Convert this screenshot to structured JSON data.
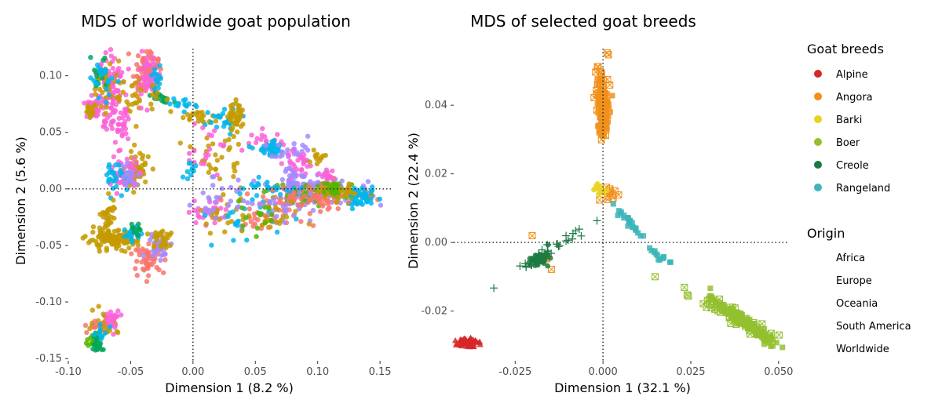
{
  "chart_data": [
    {
      "type": "scatter",
      "title": "MDS of worldwide goat population",
      "xlabel": "Dimension 1 (8.2 %)",
      "ylabel": "Dimension 2 (5.6 %)",
      "xlim": [
        -0.1,
        0.16
      ],
      "ylim": [
        -0.152,
        0.124
      ],
      "xticks": [
        -0.1,
        -0.05,
        0.0,
        0.05,
        0.1,
        0.15
      ],
      "xtick_labels": [
        "-0.10",
        "-0.05",
        "0.00",
        "0.05",
        "0.10",
        "0.15"
      ],
      "yticks": [
        -0.15,
        -0.1,
        -0.05,
        0.0,
        0.05,
        0.1
      ],
      "ytick_labels": [
        "-0.15",
        "-0.10",
        "-0.05",
        "0.00",
        "0.05",
        "0.10"
      ],
      "reference_lines": {
        "x": 0.0,
        "y": 0.0,
        "style": "dotted"
      },
      "grid": false,
      "colors": [
        "#F8766D",
        "#C49A00",
        "#53B400",
        "#00A65A",
        "#00B6EB",
        "#A58AFF",
        "#FB61D7"
      ],
      "clusters": [
        {
          "color_index": 6,
          "center": [
            -0.08,
            0.07
          ],
          "spread": [
            0.004,
            0.004
          ],
          "n": 40
        },
        {
          "color_index": 1,
          "center": [
            -0.082,
            0.068
          ],
          "spread": [
            0.002,
            0.003
          ],
          "n": 15
        },
        {
          "color_index": 6,
          "center": [
            -0.065,
            0.085
          ],
          "spread": [
            0.005,
            0.018
          ],
          "n": 90
        },
        {
          "color_index": 1,
          "center": [
            -0.068,
            0.093
          ],
          "spread": [
            0.006,
            0.01
          ],
          "n": 30
        },
        {
          "color_index": 3,
          "center": [
            -0.075,
            0.105
          ],
          "spread": [
            0.005,
            0.01
          ],
          "n": 15
        },
        {
          "color_index": 4,
          "center": [
            -0.07,
            0.1
          ],
          "spread": [
            0.006,
            0.012
          ],
          "n": 20
        },
        {
          "color_index": 0,
          "center": [
            -0.038,
            0.103
          ],
          "spread": [
            0.005,
            0.01
          ],
          "n": 80
        },
        {
          "color_index": 6,
          "center": [
            -0.036,
            0.1
          ],
          "spread": [
            0.004,
            0.008
          ],
          "n": 40
        },
        {
          "color_index": 4,
          "center": [
            -0.03,
            0.095
          ],
          "spread": [
            0.003,
            0.006
          ],
          "n": 15
        },
        {
          "color_index": 3,
          "center": [
            -0.025,
            0.08
          ],
          "spread": [
            0.004,
            0.003
          ],
          "n": 20
        },
        {
          "color_index": 1,
          "center": [
            -0.045,
            0.08
          ],
          "spread": [
            0.01,
            0.01
          ],
          "n": 30
        },
        {
          "color_index": 6,
          "center": [
            -0.06,
            0.06
          ],
          "spread": [
            0.008,
            0.01
          ],
          "n": 30
        },
        {
          "color_index": 1,
          "center": [
            -0.045,
            0.015
          ],
          "spread": [
            0.005,
            0.008
          ],
          "n": 60
        },
        {
          "color_index": 6,
          "center": [
            -0.055,
            0.013
          ],
          "spread": [
            0.005,
            0.007
          ],
          "n": 50
        },
        {
          "color_index": 4,
          "center": [
            -0.06,
            0.01
          ],
          "spread": [
            0.005,
            0.006
          ],
          "n": 30
        },
        {
          "color_index": 5,
          "center": [
            -0.05,
            0.012
          ],
          "spread": [
            0.004,
            0.005
          ],
          "n": 20
        },
        {
          "color_index": 1,
          "center": [
            -0.065,
            -0.045
          ],
          "spread": [
            0.01,
            0.004
          ],
          "n": 120
        },
        {
          "color_index": 1,
          "center": [
            -0.068,
            -0.025
          ],
          "spread": [
            0.003,
            0.01
          ],
          "n": 30
        },
        {
          "color_index": 0,
          "center": [
            -0.035,
            -0.062
          ],
          "spread": [
            0.006,
            0.006
          ],
          "n": 50
        },
        {
          "color_index": 5,
          "center": [
            -0.028,
            -0.05
          ],
          "spread": [
            0.005,
            0.005
          ],
          "n": 30
        },
        {
          "color_index": 1,
          "center": [
            -0.025,
            -0.045
          ],
          "spread": [
            0.006,
            0.006
          ],
          "n": 30
        },
        {
          "color_index": 4,
          "center": [
            -0.048,
            -0.04
          ],
          "spread": [
            0.004,
            0.004
          ],
          "n": 20
        },
        {
          "color_index": 3,
          "center": [
            -0.045,
            -0.035
          ],
          "spread": [
            0.003,
            0.003
          ],
          "n": 10
        },
        {
          "color_index": 1,
          "center": [
            -0.07,
            -0.118
          ],
          "spread": [
            0.005,
            0.005
          ],
          "n": 40
        },
        {
          "color_index": 6,
          "center": [
            -0.064,
            -0.115
          ],
          "spread": [
            0.003,
            0.004
          ],
          "n": 25
        },
        {
          "color_index": 0,
          "center": [
            -0.08,
            -0.12
          ],
          "spread": [
            0.004,
            0.004
          ],
          "n": 10
        },
        {
          "color_index": 2,
          "center": [
            -0.079,
            -0.134
          ],
          "spread": [
            0.003,
            0.003
          ],
          "n": 20
        },
        {
          "color_index": 3,
          "center": [
            -0.076,
            -0.137
          ],
          "spread": [
            0.004,
            0.004
          ],
          "n": 20
        },
        {
          "color_index": 4,
          "center": [
            -0.074,
            -0.129
          ],
          "spread": [
            0.003,
            0.004
          ],
          "n": 10
        },
        {
          "color_index": 4,
          "center": [
            -0.005,
            0.075
          ],
          "spread": [
            0.005,
            0.003
          ],
          "n": 15
        },
        {
          "color_index": 1,
          "center": [
            0.003,
            0.063
          ],
          "spread": [
            0.007,
            0.003
          ],
          "n": 20
        },
        {
          "color_index": 4,
          "center": [
            0.025,
            0.06
          ],
          "spread": [
            0.01,
            0.008
          ],
          "n": 25
        },
        {
          "color_index": 1,
          "center": [
            0.035,
            0.063
          ],
          "spread": [
            0.003,
            0.006
          ],
          "n": 40
        },
        {
          "color_index": 1,
          "center": [
            0.02,
            0.03
          ],
          "spread": [
            0.01,
            0.012
          ],
          "n": 30
        },
        {
          "color_index": 6,
          "center": [
            0.012,
            0.035
          ],
          "spread": [
            0.01,
            0.012
          ],
          "n": 20
        },
        {
          "color_index": 4,
          "center": [
            -0.002,
            0.015
          ],
          "spread": [
            0.004,
            0.006
          ],
          "n": 10
        },
        {
          "color_index": 6,
          "center": [
            0.01,
            -0.02
          ],
          "spread": [
            0.008,
            0.005
          ],
          "n": 25
        },
        {
          "color_index": 1,
          "center": [
            0.025,
            -0.025
          ],
          "spread": [
            0.01,
            0.008
          ],
          "n": 20
        },
        {
          "color_index": 5,
          "center": [
            0.02,
            -0.01
          ],
          "spread": [
            0.01,
            0.01
          ],
          "n": 25
        },
        {
          "color_index": 4,
          "center": [
            0.04,
            -0.03
          ],
          "spread": [
            0.012,
            0.01
          ],
          "n": 20
        },
        {
          "color_index": 6,
          "center": [
            0.058,
            0.042
          ],
          "spread": [
            0.008,
            0.004
          ],
          "n": 20
        },
        {
          "color_index": 4,
          "center": [
            0.063,
            0.035
          ],
          "spread": [
            0.006,
            0.003
          ],
          "n": 40
        },
        {
          "color_index": 5,
          "center": [
            0.08,
            0.03
          ],
          "spread": [
            0.01,
            0.005
          ],
          "n": 25
        },
        {
          "color_index": 6,
          "center": [
            0.085,
            0.02
          ],
          "spread": [
            0.006,
            0.008
          ],
          "n": 30
        },
        {
          "color_index": 1,
          "center": [
            0.1,
            0.029
          ],
          "spread": [
            0.003,
            0.003
          ],
          "n": 12
        },
        {
          "color_index": 5,
          "center": [
            0.098,
            -0.002
          ],
          "spread": [
            0.022,
            0.006
          ],
          "n": 120
        },
        {
          "color_index": 2,
          "center": [
            0.098,
            -0.004
          ],
          "spread": [
            0.02,
            0.005
          ],
          "n": 60
        },
        {
          "color_index": 0,
          "center": [
            0.105,
            -0.006
          ],
          "spread": [
            0.02,
            0.006
          ],
          "n": 80
        },
        {
          "color_index": 4,
          "center": [
            0.135,
            -0.008
          ],
          "spread": [
            0.006,
            0.004
          ],
          "n": 50
        },
        {
          "color_index": 1,
          "center": [
            0.118,
            -0.003
          ],
          "spread": [
            0.008,
            0.003
          ],
          "n": 30
        },
        {
          "color_index": 2,
          "center": [
            0.113,
            0.0
          ],
          "spread": [
            0.004,
            0.003
          ],
          "n": 20
        },
        {
          "color_index": 4,
          "center": [
            0.06,
            0.0
          ],
          "spread": [
            0.015,
            0.004
          ],
          "n": 25
        },
        {
          "color_index": 0,
          "center": [
            0.065,
            -0.02
          ],
          "spread": [
            0.018,
            0.008
          ],
          "n": 40
        },
        {
          "color_index": 5,
          "center": [
            0.065,
            -0.018
          ],
          "spread": [
            0.015,
            0.008
          ],
          "n": 30
        },
        {
          "color_index": 1,
          "center": [
            0.06,
            -0.025
          ],
          "spread": [
            0.015,
            0.006
          ],
          "n": 20
        },
        {
          "color_index": 2,
          "center": [
            0.05,
            -0.025
          ],
          "spread": [
            0.012,
            0.006
          ],
          "n": 15
        },
        {
          "color_index": 5,
          "center": [
            0.08,
            0.01
          ],
          "spread": [
            0.005,
            0.005
          ],
          "n": 20
        },
        {
          "color_index": 6,
          "center": [
            0.108,
            0.013
          ],
          "spread": [
            0.003,
            0.003
          ],
          "n": 15
        }
      ]
    },
    {
      "type": "scatter",
      "title": "MDS of selected goat breeds",
      "xlabel": "Dimension 1 (32.1 %)",
      "ylabel": "Dimension 2 (22.4 %)",
      "xlim": [
        -0.0425,
        0.0525
      ],
      "ylim": [
        -0.0345,
        0.0565
      ],
      "xticks": [
        -0.025,
        0.0,
        0.025,
        0.05
      ],
      "xtick_labels": [
        "-0.025",
        "0.000",
        "0.025",
        "0.050"
      ],
      "yticks": [
        -0.02,
        0.0,
        0.02,
        0.04
      ],
      "ytick_labels": [
        "-0.02",
        "0.00",
        "0.02",
        "0.04"
      ],
      "reference_lines": {
        "x": 0.0,
        "y": 0.0,
        "style": "dotted"
      },
      "grid": false,
      "colors": {
        "Alpine": "#D62728",
        "Angora": "#F0901A",
        "Barki": "#E8D31E",
        "Boer": "#93C02F",
        "Creole": "#1C7A42",
        "Rangeland": "#3BB5B9"
      },
      "legend": {
        "placement": "right",
        "breeds_title": "Goat breeds",
        "breeds": [
          "Alpine",
          "Angora",
          "Barki",
          "Boer",
          "Creole",
          "Rangeland"
        ],
        "origin_title": "Origin",
        "origins": [
          "Africa",
          "Europe",
          "Oceania",
          "South America",
          "Worldwide"
        ]
      },
      "series": [
        {
          "name": "Alpine",
          "shape": "triangle",
          "center": [
            -0.0385,
            -0.029
          ],
          "spread": [
            0.0013,
            0.0007
          ],
          "n": 70
        },
        {
          "name": "Angora",
          "shape": "square",
          "center": [
            0.0,
            0.038
          ],
          "spread": [
            0.0008,
            0.004
          ],
          "n": 120
        },
        {
          "name": "Angora",
          "shape": "square-cross",
          "center": [
            0.0,
            0.045
          ],
          "spread": [
            0.0012,
            0.0055
          ],
          "n": 35
        },
        {
          "name": "Angora",
          "shape": "square-cross",
          "center": [
            0.0025,
            0.0145
          ],
          "spread": [
            0.0015,
            0.0015
          ],
          "n": 12
        },
        {
          "name": "Angora",
          "shape": "square-cross",
          "center": [
            -0.017,
            -0.004
          ],
          "spread": [
            0.002,
            0.002
          ],
          "n": 5
        },
        {
          "name": "Barki",
          "shape": "circle",
          "center": [
            -0.001,
            0.015
          ],
          "spread": [
            0.0008,
            0.0008
          ],
          "n": 15
        },
        {
          "name": "Boer",
          "shape": "square",
          "center": [
            0.04,
            -0.023
          ],
          "spread": [
            0.004,
            0.003
          ],
          "n": 160
        },
        {
          "name": "Boer",
          "shape": "square-cross",
          "center": [
            0.036,
            -0.021
          ],
          "spread": [
            0.007,
            0.004
          ],
          "n": 50
        },
        {
          "name": "Creole",
          "shape": "circle",
          "center": [
            -0.0185,
            -0.005
          ],
          "spread": [
            0.0015,
            0.001
          ],
          "n": 45
        },
        {
          "name": "Creole",
          "shape": "plus",
          "center": [
            -0.015,
            -0.002
          ],
          "spread": [
            0.006,
            0.004
          ],
          "n": 35
        },
        {
          "name": "Rangeland",
          "shape": "square",
          "center": [
            0.0075,
            0.006
          ],
          "spread": [
            0.0025,
            0.003
          ],
          "n": 25
        },
        {
          "name": "Rangeland",
          "shape": "square",
          "center": [
            0.0175,
            -0.005
          ],
          "spread": [
            0.0035,
            0.0025
          ],
          "n": 12
        }
      ]
    }
  ]
}
